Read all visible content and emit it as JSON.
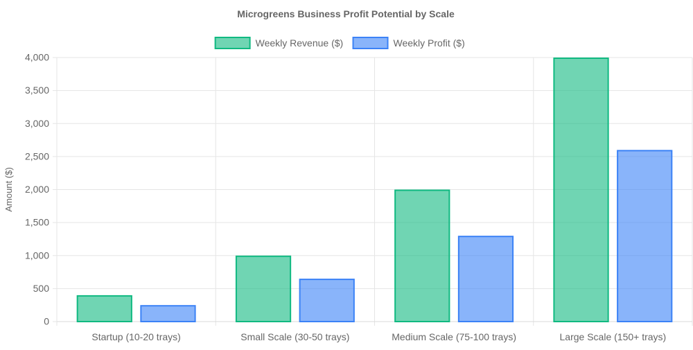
{
  "chart_data": {
    "type": "bar",
    "title": "Microgreens Business Profit Potential by Scale",
    "xlabel": "",
    "ylabel": "Amount ($)",
    "categories": [
      "Startup (10-20 trays)",
      "Small Scale (30-50 trays)",
      "Medium Scale (75-100 trays)",
      "Large Scale (150+ trays)"
    ],
    "series": [
      {
        "name": "Weekly Revenue ($)",
        "values": [
          400,
          1000,
          2000,
          4000
        ],
        "color": "#10b981",
        "fill": "rgba(16,185,129,0.6)"
      },
      {
        "name": "Weekly Profit ($)",
        "values": [
          250,
          650,
          1300,
          2600
        ],
        "color": "#3b82f6",
        "fill": "rgba(59,130,246,0.6)"
      }
    ],
    "ylim": [
      0,
      4000
    ],
    "yticks": [
      0,
      500,
      1000,
      1500,
      2000,
      2500,
      3000,
      3500,
      4000
    ],
    "ytick_labels": [
      "0",
      "500",
      "1,000",
      "1,500",
      "2,000",
      "2,500",
      "3,000",
      "3,500",
      "4,000"
    ],
    "grid": true,
    "legend_position": "top"
  }
}
